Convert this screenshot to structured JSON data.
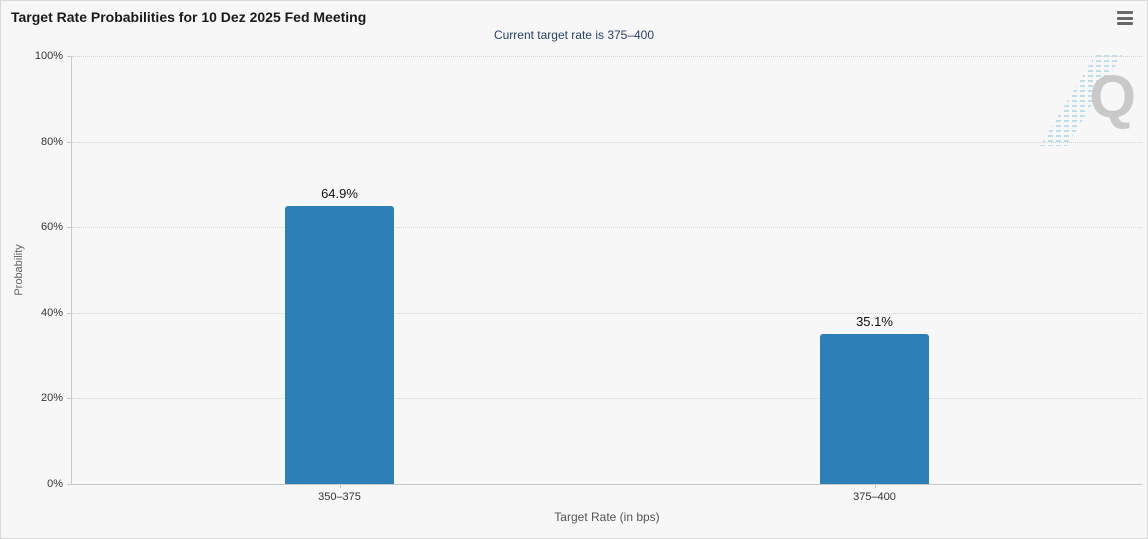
{
  "header": {
    "title": "Target Rate Probabilities for 10 Dez 2025 Fed Meeting"
  },
  "subtitle": "Current target rate is 375–400",
  "menu": {
    "icon": "hamburger-icon"
  },
  "watermark": {
    "letter": "Q"
  },
  "colors": {
    "background": "#f7f7f7",
    "bar": "#2d7fb8",
    "subtitle_text": "#28426b",
    "gridline": "#d4d4d4",
    "axis_line": "#c9c9c9"
  },
  "chart_data": {
    "type": "bar",
    "title": "Target Rate Probabilities for 10 Dez 2025 Fed Meeting",
    "subtitle": "Current target rate is 375–400",
    "categories": [
      "350–375",
      "375–400"
    ],
    "values": [
      64.9,
      35.1
    ],
    "value_labels": [
      "64.9%",
      "35.1%"
    ],
    "xlabel": "Target Rate (in bps)",
    "ylabel": "Probability",
    "ylim": [
      0,
      100
    ],
    "yticks": [
      0,
      20,
      40,
      60,
      80,
      100
    ],
    "ytick_labels": [
      "0%",
      "20%",
      "40%",
      "60%",
      "80%",
      "100%"
    ],
    "grid": "horizontal-dotted",
    "legend": "none",
    "bar_color": "#2d7fb8"
  }
}
